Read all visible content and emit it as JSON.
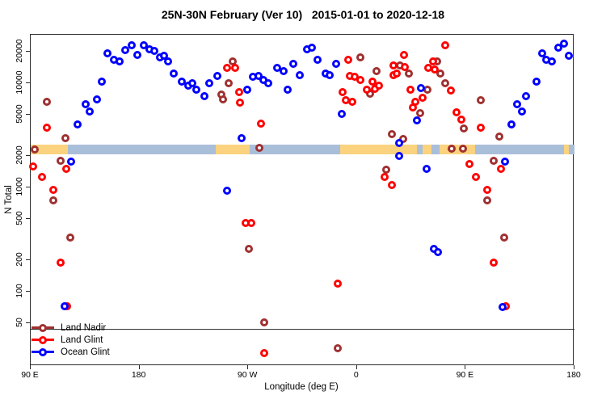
{
  "title": "25N-30N February (Ver 10)   2015-01-01 to 2020-12-18",
  "chart_data": {
    "type": "scatter",
    "title": "25N-30N February (Ver 10)   2015-01-01 to 2020-12-18",
    "xlabel": "Longitude (deg E)",
    "ylabel": "N Total",
    "x_axis": {
      "scale": "linear",
      "plot_range_deg": [
        90,
        540
      ],
      "note": "longitude axis wraps around the globe: 90E to 180 to 90W to 0 to 90E to 180",
      "ticks": [
        {
          "value": 90,
          "label": "90 E"
        },
        {
          "value": 180,
          "label": "180"
        },
        {
          "value": 270,
          "label": "90 W"
        },
        {
          "value": 360,
          "label": "0"
        },
        {
          "value": 450,
          "label": "90 E"
        },
        {
          "value": 540,
          "label": "180"
        }
      ]
    },
    "y_axis": {
      "scale": "log",
      "range": [
        19.5,
        29000
      ],
      "ticks": [
        50,
        100,
        200,
        500,
        1000,
        2000,
        5000,
        10000,
        20000
      ]
    },
    "reference_line_y": 44,
    "map_strip": {
      "description": "world coastline band at 25N-30N drawn across the plot near N=2300",
      "n_top": 2570,
      "n_bottom": 2070,
      "land_color": "#FBD27E",
      "ocean_color": "#A9BED9",
      "segments": [
        {
          "from": 90,
          "to": 120.8,
          "type": "land"
        },
        {
          "from": 120.8,
          "to": 243,
          "type": "ocean"
        },
        {
          "from": 243,
          "to": 271,
          "type": "land"
        },
        {
          "from": 271,
          "to": 346,
          "type": "ocean"
        },
        {
          "from": 346,
          "to": 409.5,
          "type": "land"
        },
        {
          "from": 409.5,
          "to": 414.5,
          "type": "ocean"
        },
        {
          "from": 414.5,
          "to": 421.5,
          "type": "land"
        },
        {
          "from": 421.5,
          "to": 428.5,
          "type": "ocean"
        },
        {
          "from": 428.5,
          "to": 457.5,
          "type": "land"
        },
        {
          "from": 457.5,
          "to": 531.5,
          "type": "ocean"
        },
        {
          "from": 531.5,
          "to": 535.5,
          "type": "land"
        },
        {
          "from": 535.5,
          "to": 540,
          "type": "ocean"
        }
      ]
    },
    "legend": {
      "position": "bottom-left",
      "entries": [
        {
          "label": "Land Nadir",
          "color": "#A03030"
        },
        {
          "label": "Land Glint",
          "color": "#FF0000"
        },
        {
          "label": "Ocean Glint",
          "color": "#0000FF"
        }
      ]
    },
    "series": [
      {
        "name": "Land Nadir",
        "color": "#A03030",
        "marker": "open-circle",
        "points": [
          [
            103.5,
            6600
          ],
          [
            119,
            2960
          ],
          [
            93.5,
            2310
          ],
          [
            115,
            1800
          ],
          [
            109,
            750
          ],
          [
            123,
            330
          ],
          [
            248,
            7700
          ],
          [
            249,
            7000
          ],
          [
            254,
            9950
          ],
          [
            257,
            16100
          ],
          [
            270.5,
            260
          ],
          [
            279,
            2390
          ],
          [
            283.5,
            51
          ],
          [
            344,
            29
          ],
          [
            363,
            17600
          ],
          [
            371,
            7900
          ],
          [
            376,
            13000
          ],
          [
            384,
            1480
          ],
          [
            389,
            3230
          ],
          [
            395.5,
            14700
          ],
          [
            398.5,
            2910
          ],
          [
            403,
            12300
          ],
          [
            412.5,
            5140
          ],
          [
            418.5,
            8630
          ],
          [
            426.5,
            16100
          ],
          [
            429,
            12300
          ],
          [
            433,
            9950
          ],
          [
            438.5,
            2340
          ],
          [
            447.5,
            2340
          ],
          [
            448.5,
            3670
          ],
          [
            462.5,
            6840
          ],
          [
            468,
            750
          ],
          [
            473,
            1800
          ],
          [
            478,
            3070
          ],
          [
            482,
            330
          ]
        ]
      },
      {
        "name": "Land Glint",
        "color": "#FF0000",
        "marker": "open-circle",
        "points": [
          [
            103.5,
            3730
          ],
          [
            92,
            1590
          ],
          [
            119.5,
            1500
          ],
          [
            99.5,
            1260
          ],
          [
            109,
            950
          ],
          [
            115,
            190
          ],
          [
            120,
            73
          ],
          [
            252.5,
            14000
          ],
          [
            259,
            14000
          ],
          [
            262.5,
            8200
          ],
          [
            263,
            6500
          ],
          [
            280.5,
            4100
          ],
          [
            268,
            460
          ],
          [
            272.5,
            460
          ],
          [
            283.5,
            26
          ],
          [
            344,
            120
          ],
          [
            348,
            8200
          ],
          [
            351,
            6800
          ],
          [
            356,
            6600
          ],
          [
            353,
            16700
          ],
          [
            354,
            11700
          ],
          [
            358,
            11500
          ],
          [
            363,
            10700
          ],
          [
            368,
            8630
          ],
          [
            373,
            10300
          ],
          [
            375,
            8800
          ],
          [
            378,
            9400
          ],
          [
            383,
            1260
          ],
          [
            389,
            1050
          ],
          [
            390,
            14700
          ],
          [
            390,
            11900
          ],
          [
            393,
            12300
          ],
          [
            399,
            18600
          ],
          [
            399.5,
            14200
          ],
          [
            404.5,
            8630
          ],
          [
            406.5,
            5800
          ],
          [
            408.5,
            6600
          ],
          [
            414.5,
            7200
          ],
          [
            419,
            14000
          ],
          [
            423,
            16100
          ],
          [
            424.5,
            13500
          ],
          [
            433,
            23000
          ],
          [
            437.5,
            8500
          ],
          [
            442.5,
            5200
          ],
          [
            446.5,
            4500
          ],
          [
            453,
            1670
          ],
          [
            458.5,
            1260
          ],
          [
            462.5,
            3730
          ],
          [
            468,
            950
          ],
          [
            479,
            1500
          ],
          [
            473,
            190
          ],
          [
            483,
            73
          ]
        ]
      },
      {
        "name": "Ocean Glint",
        "color": "#0000FF",
        "marker": "open-circle",
        "points": [
          [
            153.5,
            19200
          ],
          [
            168,
            20600
          ],
          [
            173.5,
            23000
          ],
          [
            159,
            16700
          ],
          [
            163.5,
            16100
          ],
          [
            178.5,
            18600
          ],
          [
            183.5,
            23000
          ],
          [
            188.5,
            21000
          ],
          [
            192.5,
            20300
          ],
          [
            197,
            17600
          ],
          [
            200.5,
            18300
          ],
          [
            203.5,
            16100
          ],
          [
            208.5,
            12300
          ],
          [
            215,
            10300
          ],
          [
            220.5,
            9400
          ],
          [
            223.5,
            9950
          ],
          [
            227,
            8600
          ],
          [
            234,
            7500
          ],
          [
            238,
            9950
          ],
          [
            244.5,
            11700
          ],
          [
            149,
            10300
          ],
          [
            129,
            4000
          ],
          [
            135.5,
            6250
          ],
          [
            139,
            5300
          ],
          [
            145,
            7000
          ],
          [
            123.5,
            1770
          ],
          [
            118,
            73
          ],
          [
            252.5,
            930
          ],
          [
            264.5,
            2960
          ],
          [
            269,
            8630
          ],
          [
            274,
            11500
          ],
          [
            278.5,
            11700
          ],
          [
            282.5,
            10700
          ],
          [
            286.5,
            9950
          ],
          [
            294,
            14000
          ],
          [
            299.5,
            13000
          ],
          [
            302.5,
            8630
          ],
          [
            307.5,
            15200
          ],
          [
            312.5,
            11900
          ],
          [
            318.5,
            21000
          ],
          [
            322.5,
            21800
          ],
          [
            327.5,
            16700
          ],
          [
            334,
            12300
          ],
          [
            337.5,
            11900
          ],
          [
            343,
            15200
          ],
          [
            347.5,
            5050
          ],
          [
            395,
            2660
          ],
          [
            395,
            2000
          ],
          [
            413,
            8900
          ],
          [
            409.5,
            4400
          ],
          [
            417.5,
            1500
          ],
          [
            423.5,
            260
          ],
          [
            427,
            240
          ],
          [
            480.5,
            71
          ],
          [
            482.5,
            1770
          ],
          [
            488,
            4000
          ],
          [
            492.5,
            6250
          ],
          [
            496.5,
            5330
          ],
          [
            500,
            7480
          ],
          [
            508.5,
            10300
          ],
          [
            513.5,
            19200
          ],
          [
            516.5,
            16700
          ],
          [
            521.5,
            16100
          ],
          [
            526.5,
            21800
          ],
          [
            531.5,
            23800
          ],
          [
            535.5,
            18300
          ]
        ]
      }
    ]
  }
}
